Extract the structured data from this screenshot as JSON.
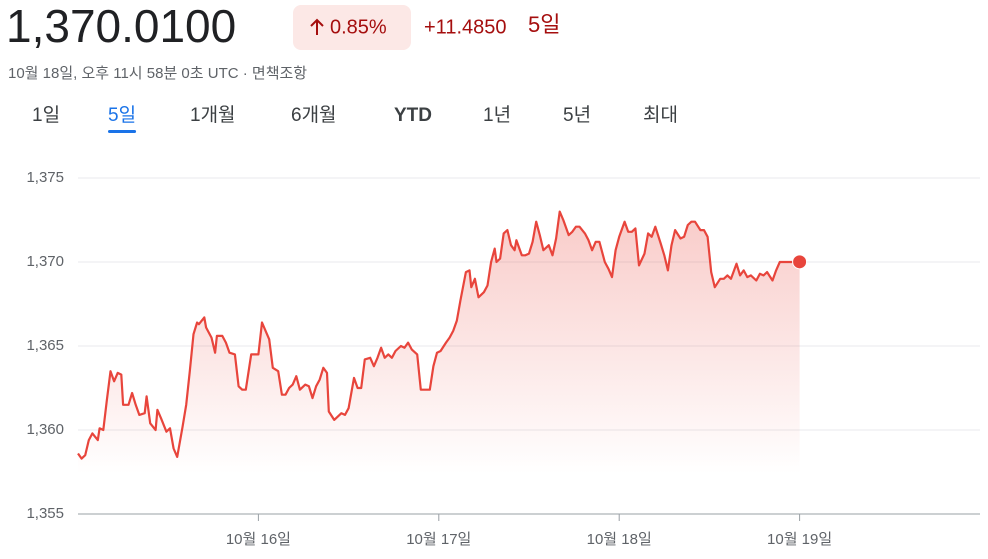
{
  "header": {
    "price": "1,370.0100",
    "change_percent": "0.85%",
    "change_value": "+11.4850",
    "change_period": "5일",
    "timestamp": "10월 18일, 오후 11시 58분 0초 UTC · 면책조항"
  },
  "tabs": {
    "items": [
      "1일",
      "5일",
      "1개월",
      "6개월",
      "YTD",
      "1년",
      "5년",
      "최대"
    ],
    "selected": 1
  },
  "chart_data": {
    "type": "line",
    "color": "#e8453c",
    "grid": true,
    "xlim": [
      0,
      5
    ],
    "ylim": [
      1355,
      1375
    ],
    "xticks": [
      {
        "value": 1,
        "label": "10월 16일"
      },
      {
        "value": 2,
        "label": "10월 17일"
      },
      {
        "value": 3,
        "label": "10월 18일"
      },
      {
        "value": 4,
        "label": "10월 19일"
      }
    ],
    "yticks": [
      {
        "value": 1355,
        "label": "1,355"
      },
      {
        "value": 1360,
        "label": "1,360"
      },
      {
        "value": 1365,
        "label": "1,365"
      },
      {
        "value": 1370,
        "label": "1,370"
      },
      {
        "value": 1375,
        "label": "1,375"
      }
    ],
    "x": [
      0.0,
      0.02,
      0.04,
      0.06,
      0.08,
      0.11,
      0.12,
      0.14,
      0.16,
      0.18,
      0.2,
      0.22,
      0.24,
      0.25,
      0.28,
      0.3,
      0.32,
      0.34,
      0.37,
      0.38,
      0.4,
      0.43,
      0.44,
      0.46,
      0.49,
      0.51,
      0.53,
      0.55,
      0.58,
      0.6,
      0.62,
      0.64,
      0.66,
      0.67,
      0.7,
      0.71,
      0.74,
      0.76,
      0.77,
      0.8,
      0.82,
      0.84,
      0.87,
      0.89,
      0.91,
      0.93,
      0.96,
      0.98,
      1.0,
      1.02,
      1.04,
      1.06,
      1.08,
      1.11,
      1.13,
      1.15,
      1.17,
      1.19,
      1.21,
      1.23,
      1.26,
      1.28,
      1.3,
      1.32,
      1.34,
      1.36,
      1.38,
      1.39,
      1.42,
      1.44,
      1.46,
      1.48,
      1.5,
      1.53,
      1.55,
      1.57,
      1.59,
      1.62,
      1.64,
      1.66,
      1.68,
      1.7,
      1.72,
      1.74,
      1.76,
      1.79,
      1.81,
      1.83,
      1.85,
      1.88,
      1.9,
      1.92,
      1.95,
      1.97,
      1.99,
      2.01,
      2.04,
      2.06,
      2.08,
      2.1,
      2.12,
      2.15,
      2.17,
      2.18,
      2.2,
      2.22,
      2.25,
      2.27,
      2.29,
      2.31,
      2.32,
      2.34,
      2.36,
      2.38,
      2.4,
      2.42,
      2.43,
      2.46,
      2.48,
      2.5,
      2.52,
      2.54,
      2.56,
      2.58,
      2.61,
      2.63,
      2.65,
      2.67,
      2.69,
      2.72,
      2.74,
      2.76,
      2.78,
      2.81,
      2.83,
      2.85,
      2.87,
      2.89,
      2.92,
      2.94,
      2.96,
      2.98,
      3.0,
      3.03,
      3.05,
      3.07,
      3.09,
      3.11,
      3.14,
      3.16,
      3.18,
      3.2,
      3.23,
      3.25,
      3.27,
      3.29,
      3.31,
      3.34,
      3.36,
      3.38,
      3.4,
      3.42,
      3.45,
      3.47,
      3.49,
      3.51,
      3.53,
      3.56,
      3.58,
      3.6,
      3.62,
      3.65,
      3.67,
      3.69,
      3.71,
      3.73,
      3.76,
      3.78,
      3.8,
      3.82,
      3.85,
      3.87,
      3.89,
      3.91,
      3.94,
      3.97,
      4.0
    ],
    "values": [
      1358.6,
      1358.3,
      1358.5,
      1359.4,
      1359.8,
      1359.4,
      1360.1,
      1360.0,
      1361.8,
      1363.5,
      1362.9,
      1363.4,
      1363.3,
      1361.5,
      1361.5,
      1362.2,
      1361.5,
      1360.9,
      1361.0,
      1362.0,
      1360.4,
      1360.0,
      1361.2,
      1360.7,
      1359.9,
      1360.1,
      1358.9,
      1358.4,
      1360.2,
      1361.5,
      1363.5,
      1365.7,
      1366.4,
      1366.3,
      1366.7,
      1366.1,
      1365.5,
      1364.6,
      1365.6,
      1365.6,
      1365.2,
      1364.6,
      1364.5,
      1362.6,
      1362.4,
      1362.4,
      1364.5,
      1364.5,
      1364.5,
      1366.4,
      1365.9,
      1365.4,
      1363.7,
      1363.5,
      1362.1,
      1362.1,
      1362.5,
      1362.7,
      1363.2,
      1362.4,
      1362.7,
      1362.6,
      1361.9,
      1362.6,
      1363.0,
      1363.7,
      1363.4,
      1361.1,
      1360.6,
      1360.8,
      1361.0,
      1360.9,
      1361.3,
      1363.1,
      1362.5,
      1362.5,
      1364.2,
      1364.3,
      1363.8,
      1364.3,
      1364.9,
      1364.3,
      1364.5,
      1364.3,
      1364.7,
      1365.0,
      1364.9,
      1365.2,
      1364.8,
      1364.5,
      1362.4,
      1362.4,
      1362.4,
      1363.8,
      1364.6,
      1364.7,
      1365.2,
      1365.5,
      1365.9,
      1366.5,
      1367.7,
      1369.4,
      1369.5,
      1368.5,
      1369.0,
      1367.9,
      1368.2,
      1368.6,
      1370.0,
      1370.8,
      1370.0,
      1370.2,
      1371.7,
      1371.9,
      1371.0,
      1370.7,
      1371.3,
      1370.4,
      1370.4,
      1370.5,
      1371.2,
      1372.4,
      1371.6,
      1370.7,
      1371.0,
      1370.4,
      1371.4,
      1373.0,
      1372.5,
      1371.6,
      1371.8,
      1372.1,
      1372.1,
      1371.7,
      1371.3,
      1370.7,
      1371.2,
      1371.2,
      1370.0,
      1369.6,
      1369.1,
      1370.7,
      1371.5,
      1372.4,
      1371.8,
      1371.8,
      1372.0,
      1369.8,
      1370.5,
      1371.7,
      1371.5,
      1372.1,
      1371.1,
      1370.4,
      1369.5,
      1371.0,
      1371.9,
      1371.4,
      1371.5,
      1372.2,
      1372.4,
      1372.4,
      1371.9,
      1371.9,
      1371.5,
      1369.4,
      1368.5,
      1369.0,
      1369.0,
      1369.2,
      1369.0,
      1369.9,
      1369.2,
      1369.5,
      1369.1,
      1369.2,
      1368.9,
      1369.3,
      1369.2,
      1369.4,
      1368.9,
      1369.5,
      1370.0,
      1370.0,
      1370.0,
      1370.0,
      1370.01
    ]
  }
}
